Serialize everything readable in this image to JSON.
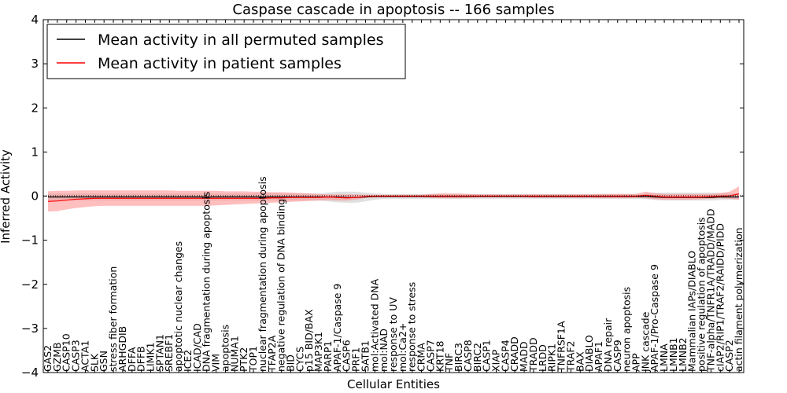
{
  "chart_data": {
    "type": "line",
    "title": "Caspase cascade in apoptosis -- 166 samples",
    "xlabel": "Cellular Entities",
    "ylabel": "Inferred Activity",
    "ylim": [
      -4,
      4
    ],
    "yticks": [
      -4,
      -3,
      -2,
      -1,
      0,
      1,
      2,
      3,
      4
    ],
    "ytick_labels": [
      "−4",
      "−3",
      "−2",
      "−1",
      "0",
      "1",
      "2",
      "3",
      "4"
    ],
    "legend_position": "top-left",
    "categories": [
      "GAS2",
      "GZMB",
      "CASP10",
      "CASP3",
      "ACTA1",
      "SLK",
      "GSN",
      "stress fiber formation",
      "ARHGDIB",
      "DFFA",
      "DFFB",
      "LIMK1",
      "SPTAN1",
      "SREBF1",
      "apoptotic nuclear changes",
      "ICE2",
      "ICAD/CAD",
      "DNA fragmentation during apoptosis",
      "VIM",
      "apoptosis",
      "NUMA1",
      "PTK2",
      "TOP1",
      "nuclear fragmentation during apoptosis",
      "TFAP2A",
      "negative regulation of DNA binding",
      "BID",
      "CYCS",
      "p15 BID/BAX",
      "MAP3K1",
      "PARP1",
      "APAF-1/Caspase 9",
      "CASP6",
      "PRF1",
      "SATB1",
      "mol:Activated DNA",
      "mol:NAD",
      "response to UV",
      "mol:Ca2+",
      "response to stress",
      "CRMA",
      "CASP7",
      "KRT18",
      "TNF",
      "BIRC3",
      "CASP8",
      "BIRC2",
      "CASP1",
      "XIAP",
      "CASP4",
      "CRADD",
      "MADD",
      "TRADD",
      "LRDD",
      "RIPK1",
      "TNFRSF1A",
      "TRAF2",
      "BAX",
      "DIABLO",
      "APAF1",
      "DNA repair",
      "CASP9",
      "neuron apoptosis",
      "APP",
      "JNK cascade",
      "APAF-1/Pro-Caspase 9",
      "LMNA",
      "LMNB1",
      "LMNB2",
      "Mammalian IAPs/DIABLO",
      "positive regulation of apoptosis",
      "TNF-alpha/TNFR1A/TRADD/MADD",
      "cIAP2/RIP1/TRAF2/RAIDD/PIDD",
      "CASP2",
      "actin filament polymerization"
    ],
    "series": [
      {
        "name": "Mean activity in all permuted samples",
        "color": "#000000",
        "band_color": "#bbbbbb",
        "values": [
          -0.02,
          -0.02,
          -0.02,
          -0.02,
          -0.02,
          -0.02,
          -0.02,
          -0.02,
          -0.02,
          -0.02,
          -0.02,
          -0.02,
          -0.02,
          -0.02,
          -0.02,
          -0.02,
          -0.02,
          -0.02,
          -0.02,
          -0.02,
          -0.02,
          -0.02,
          -0.02,
          -0.02,
          -0.02,
          -0.02,
          -0.02,
          -0.02,
          -0.02,
          -0.02,
          -0.02,
          -0.02,
          -0.03,
          -0.03,
          -0.02,
          -0.01,
          -0.01,
          -0.01,
          -0.01,
          -0.01,
          -0.01,
          -0.01,
          -0.01,
          -0.01,
          -0.01,
          -0.01,
          -0.01,
          -0.01,
          -0.01,
          -0.01,
          -0.01,
          -0.01,
          -0.01,
          -0.01,
          -0.01,
          -0.01,
          -0.01,
          -0.01,
          -0.01,
          -0.01,
          -0.01,
          -0.01,
          -0.01,
          -0.01,
          -0.01,
          -0.02,
          -0.03,
          -0.03,
          -0.03,
          -0.03,
          -0.03,
          -0.03,
          -0.02,
          -0.02,
          -0.02
        ],
        "lower": [
          -0.1,
          -0.1,
          -0.1,
          -0.1,
          -0.1,
          -0.1,
          -0.1,
          -0.1,
          -0.1,
          -0.1,
          -0.1,
          -0.1,
          -0.1,
          -0.1,
          -0.1,
          -0.1,
          -0.1,
          -0.1,
          -0.1,
          -0.1,
          -0.1,
          -0.1,
          -0.1,
          -0.1,
          -0.1,
          -0.1,
          -0.1,
          -0.1,
          -0.1,
          -0.1,
          -0.12,
          -0.14,
          -0.15,
          -0.15,
          -0.12,
          -0.08,
          -0.06,
          -0.06,
          -0.06,
          -0.06,
          -0.06,
          -0.06,
          -0.06,
          -0.06,
          -0.06,
          -0.06,
          -0.06,
          -0.06,
          -0.06,
          -0.06,
          -0.06,
          -0.06,
          -0.06,
          -0.06,
          -0.06,
          -0.06,
          -0.06,
          -0.06,
          -0.06,
          -0.06,
          -0.06,
          -0.06,
          -0.06,
          -0.06,
          -0.07,
          -0.09,
          -0.1,
          -0.1,
          -0.1,
          -0.1,
          -0.1,
          -0.1,
          -0.09,
          -0.08,
          -0.08
        ],
        "upper": [
          0.06,
          0.06,
          0.06,
          0.06,
          0.06,
          0.06,
          0.06,
          0.06,
          0.06,
          0.06,
          0.06,
          0.06,
          0.06,
          0.06,
          0.06,
          0.06,
          0.06,
          0.06,
          0.06,
          0.06,
          0.06,
          0.06,
          0.06,
          0.06,
          0.06,
          0.06,
          0.06,
          0.06,
          0.06,
          0.06,
          0.08,
          0.1,
          0.1,
          0.1,
          0.08,
          0.06,
          0.05,
          0.05,
          0.05,
          0.05,
          0.05,
          0.05,
          0.05,
          0.05,
          0.05,
          0.05,
          0.05,
          0.05,
          0.05,
          0.05,
          0.05,
          0.05,
          0.05,
          0.05,
          0.05,
          0.05,
          0.05,
          0.05,
          0.05,
          0.05,
          0.05,
          0.05,
          0.05,
          0.05,
          0.06,
          0.07,
          0.08,
          0.08,
          0.08,
          0.08,
          0.08,
          0.08,
          0.07,
          0.06,
          0.06
        ]
      },
      {
        "name": "Mean activity in patient samples",
        "color": "#ff0000",
        "band_color": "#ff8080",
        "values": [
          -0.12,
          -0.11,
          -0.09,
          -0.07,
          -0.06,
          -0.05,
          -0.05,
          -0.05,
          -0.05,
          -0.05,
          -0.05,
          -0.05,
          -0.05,
          -0.05,
          -0.05,
          -0.05,
          -0.05,
          -0.05,
          -0.05,
          -0.05,
          -0.05,
          -0.05,
          -0.05,
          -0.05,
          -0.04,
          -0.04,
          -0.03,
          -0.03,
          -0.03,
          -0.03,
          -0.02,
          -0.03,
          -0.04,
          -0.03,
          -0.01,
          0.0,
          0.0,
          0.0,
          0.0,
          0.0,
          0.0,
          0.0,
          0.0,
          0.0,
          0.0,
          0.0,
          0.0,
          0.0,
          0.0,
          0.0,
          0.0,
          0.0,
          0.0,
          0.0,
          0.0,
          0.0,
          0.0,
          0.0,
          0.0,
          0.0,
          0.0,
          0.0,
          0.0,
          0.0,
          0.02,
          0.0,
          -0.02,
          -0.02,
          -0.02,
          -0.02,
          -0.02,
          -0.01,
          0.0,
          0.01,
          0.05
        ],
        "lower": [
          -0.35,
          -0.34,
          -0.3,
          -0.27,
          -0.25,
          -0.23,
          -0.22,
          -0.22,
          -0.22,
          -0.22,
          -0.22,
          -0.22,
          -0.22,
          -0.22,
          -0.22,
          -0.22,
          -0.22,
          -0.22,
          -0.21,
          -0.2,
          -0.19,
          -0.18,
          -0.17,
          -0.16,
          -0.15,
          -0.14,
          -0.13,
          -0.12,
          -0.11,
          -0.1,
          -0.09,
          -0.1,
          -0.1,
          -0.08,
          -0.04,
          -0.03,
          -0.03,
          -0.03,
          -0.03,
          -0.03,
          -0.03,
          -0.04,
          -0.05,
          -0.05,
          -0.05,
          -0.04,
          -0.03,
          -0.03,
          -0.03,
          -0.03,
          -0.03,
          -0.03,
          -0.04,
          -0.04,
          -0.04,
          -0.04,
          -0.04,
          -0.04,
          -0.04,
          -0.05,
          -0.05,
          -0.05,
          -0.05,
          -0.04,
          -0.05,
          -0.07,
          -0.08,
          -0.08,
          -0.08,
          -0.08,
          -0.07,
          -0.06,
          -0.05,
          -0.06,
          -0.08
        ],
        "upper": [
          0.11,
          0.12,
          0.12,
          0.13,
          0.13,
          0.13,
          0.13,
          0.13,
          0.13,
          0.13,
          0.13,
          0.13,
          0.13,
          0.13,
          0.12,
          0.12,
          0.12,
          0.12,
          0.12,
          0.11,
          0.11,
          0.11,
          0.1,
          0.1,
          0.09,
          0.09,
          0.08,
          0.07,
          0.06,
          0.05,
          0.04,
          0.04,
          0.04,
          0.04,
          0.03,
          0.03,
          0.03,
          0.03,
          0.03,
          0.03,
          0.03,
          0.05,
          0.06,
          0.06,
          0.06,
          0.05,
          0.04,
          0.04,
          0.04,
          0.04,
          0.04,
          0.04,
          0.04,
          0.04,
          0.04,
          0.04,
          0.04,
          0.04,
          0.04,
          0.05,
          0.05,
          0.05,
          0.05,
          0.05,
          0.1,
          0.07,
          0.05,
          0.05,
          0.05,
          0.05,
          0.05,
          0.05,
          0.07,
          0.1,
          0.22
        ]
      }
    ]
  }
}
